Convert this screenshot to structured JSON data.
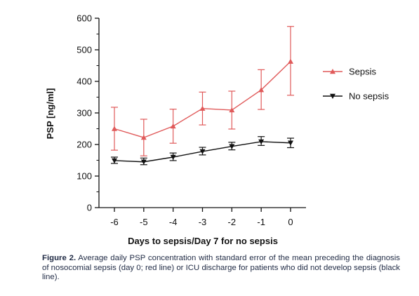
{
  "chart_data": {
    "type": "line",
    "x": [
      -6,
      -5,
      -4,
      -3,
      -2,
      -1,
      0
    ],
    "x_tick_labels": [
      "-6",
      "-5",
      "-4",
      "-3",
      "-2",
      "-1",
      "0"
    ],
    "xlabel": "Days to sepsis/Day 7 for no sepsis",
    "ylabel": "PSP  [ng/ml]",
    "ylim": [
      0,
      600
    ],
    "y_ticks": [
      0,
      100,
      200,
      300,
      400,
      500,
      600
    ],
    "y_tick_labels": [
      "0",
      "100",
      "200",
      "300",
      "400",
      "500",
      "600"
    ],
    "grid": false,
    "legend_position": "right",
    "series": [
      {
        "name": "Sepsis",
        "color": "#e05a5a",
        "marker": "triangle-up",
        "values": [
          250,
          222,
          258,
          314,
          309,
          373,
          463
        ],
        "err_upper": [
          318,
          280,
          312,
          366,
          369,
          437,
          574
        ],
        "err_lower": [
          182,
          164,
          204,
          262,
          249,
          311,
          356
        ]
      },
      {
        "name": "No sepsis",
        "color": "#111111",
        "marker": "triangle-down",
        "values": [
          149,
          145,
          160,
          178,
          194,
          209,
          205
        ],
        "err_upper": [
          160,
          157,
          173,
          191,
          207,
          225,
          220
        ],
        "err_lower": [
          140,
          136,
          149,
          167,
          183,
          197,
          190
        ]
      }
    ]
  },
  "caption": {
    "label": "Figure 2.",
    "text": " Average daily PSP concentration with standard error of the mean preceding the diagnosis of nosocomial sepsis (day 0; red line) or ICU discharge for patients who did not develop sepsis (black line)."
  }
}
